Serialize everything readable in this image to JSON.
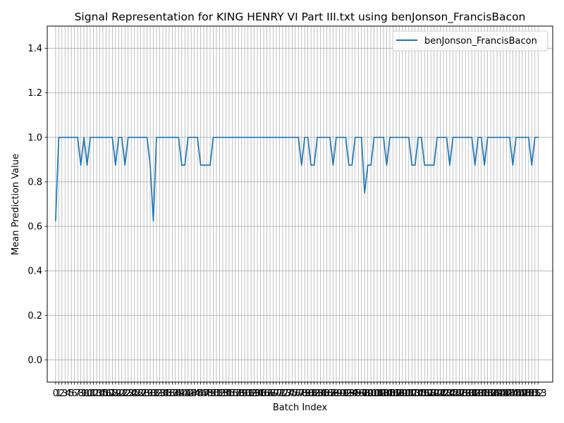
{
  "chart_data": {
    "type": "line",
    "title": "Signal Representation for KING HENRY VI Part III.txt using benJonson_FrancisBacon",
    "xlabel": "Batch Index",
    "ylabel": "Mean Prediction Value",
    "xlim": [
      -2.65,
      157.65
    ],
    "ylim": [
      -0.1,
      1.5
    ],
    "yticks": [
      0.0,
      0.2,
      0.4,
      0.6,
      0.8,
      1.0,
      1.2,
      1.4
    ],
    "ytick_labels": [
      "0.0",
      "0.2",
      "0.4",
      "0.6",
      "0.8",
      "1.0",
      "1.2",
      "1.4"
    ],
    "xtick_step": 1,
    "xtick_labels_visible": [
      "0",
      "1",
      "2",
      "3",
      "4",
      "5",
      "6",
      "7",
      "8",
      "9",
      "10",
      "11",
      "12",
      "13",
      "14",
      "15",
      "16",
      "17",
      "18",
      "19",
      "20",
      "21",
      "22",
      "23",
      "24",
      "25",
      "26",
      "27",
      "28",
      "29",
      "30",
      "31",
      "32",
      "33",
      "34",
      "35",
      "36",
      "37",
      "38",
      "39",
      "40",
      "41",
      "42",
      "43",
      "44",
      "45",
      "46",
      "47",
      "48",
      "49",
      "50",
      "51",
      "52",
      "53",
      "54",
      "55",
      "56",
      "57",
      "58",
      "59",
      "60",
      "61",
      "62",
      "63",
      "64",
      "65",
      "66",
      "67",
      "68",
      "69",
      "70",
      "71",
      "72",
      "73",
      "74",
      "75",
      "76",
      "77",
      "78",
      "79",
      "80",
      "81",
      "82",
      "83",
      "84",
      "85",
      "86",
      "87",
      "88",
      "89",
      "90",
      "91",
      "92",
      "93",
      "94",
      "95",
      "96",
      "97",
      "98",
      "99",
      "100",
      "101",
      "102",
      "103",
      "104",
      "105",
      "106",
      "107",
      "108",
      "109",
      "110",
      "111",
      "112",
      "113",
      "114",
      "115",
      "116",
      "117",
      "118",
      "119",
      "120",
      "121",
      "122",
      "123",
      "124",
      "125",
      "126",
      "127",
      "128",
      "129",
      "130",
      "131",
      "132",
      "133",
      "134",
      "135",
      "136",
      "137",
      "138",
      "139",
      "140",
      "141",
      "142",
      "143",
      "144",
      "145",
      "146",
      "147",
      "148",
      "149",
      "150",
      "151",
      "152",
      "153"
    ],
    "grid": true,
    "legend_position": "upper right",
    "series": [
      {
        "name": "benJonson_FrancisBacon",
        "color": "#1f77b4",
        "x": [
          0,
          1,
          2,
          3,
          4,
          5,
          6,
          7,
          8,
          9,
          10,
          11,
          12,
          13,
          14,
          15,
          16,
          17,
          18,
          19,
          20,
          21,
          22,
          23,
          24,
          25,
          26,
          27,
          28,
          29,
          30,
          31,
          32,
          33,
          34,
          35,
          36,
          37,
          38,
          39,
          40,
          41,
          42,
          43,
          44,
          45,
          46,
          47,
          48,
          49,
          50,
          51,
          52,
          53,
          54,
          55,
          56,
          57,
          58,
          59,
          60,
          61,
          62,
          63,
          64,
          65,
          66,
          67,
          68,
          69,
          70,
          71,
          72,
          73,
          74,
          75,
          76,
          77,
          78,
          79,
          80,
          81,
          82,
          83,
          84,
          85,
          86,
          87,
          88,
          89,
          90,
          91,
          92,
          93,
          94,
          95,
          96,
          97,
          98,
          99,
          100,
          101,
          102,
          103,
          104,
          105,
          106,
          107,
          108,
          109,
          110,
          111,
          112,
          113,
          114,
          115,
          116,
          117,
          118,
          119,
          120,
          121,
          122,
          123,
          124,
          125,
          126,
          127,
          128,
          129,
          130,
          131,
          132,
          133,
          134,
          135,
          136,
          137,
          138,
          139,
          140,
          141,
          142,
          143,
          144,
          145,
          146,
          147,
          148,
          149,
          150,
          151,
          152,
          153
        ],
        "values": [
          0.625,
          1.0,
          1.0,
          1.0,
          1.0,
          1.0,
          1.0,
          1.0,
          0.875,
          1.0,
          0.875,
          1.0,
          1.0,
          1.0,
          1.0,
          1.0,
          1.0,
          1.0,
          1.0,
          0.875,
          1.0,
          1.0,
          0.875,
          1.0,
          1.0,
          1.0,
          1.0,
          1.0,
          1.0,
          1.0,
          0.875,
          0.625,
          1.0,
          1.0,
          1.0,
          1.0,
          1.0,
          1.0,
          1.0,
          1.0,
          0.875,
          0.875,
          1.0,
          1.0,
          1.0,
          1.0,
          0.875,
          0.875,
          0.875,
          0.875,
          1.0,
          1.0,
          1.0,
          1.0,
          1.0,
          1.0,
          1.0,
          1.0,
          1.0,
          1.0,
          1.0,
          1.0,
          1.0,
          1.0,
          1.0,
          1.0,
          1.0,
          1.0,
          1.0,
          1.0,
          1.0,
          1.0,
          1.0,
          1.0,
          1.0,
          1.0,
          1.0,
          1.0,
          0.875,
          1.0,
          1.0,
          0.875,
          0.875,
          1.0,
          1.0,
          1.0,
          1.0,
          1.0,
          0.875,
          1.0,
          1.0,
          1.0,
          1.0,
          0.875,
          0.875,
          1.0,
          1.0,
          1.0,
          0.75,
          0.875,
          0.875,
          1.0,
          1.0,
          1.0,
          1.0,
          0.875,
          1.0,
          1.0,
          1.0,
          1.0,
          1.0,
          1.0,
          1.0,
          0.875,
          0.875,
          1.0,
          1.0,
          0.875,
          0.875,
          0.875,
          0.875,
          1.0,
          1.0,
          1.0,
          1.0,
          0.875,
          1.0,
          1.0,
          1.0,
          1.0,
          1.0,
          1.0,
          1.0,
          0.875,
          1.0,
          1.0,
          0.875,
          1.0,
          1.0,
          1.0,
          1.0,
          1.0,
          1.0,
          1.0,
          1.0,
          0.875,
          1.0,
          1.0,
          1.0,
          1.0,
          1.0,
          0.875,
          1.0,
          1.0
        ]
      }
    ]
  }
}
